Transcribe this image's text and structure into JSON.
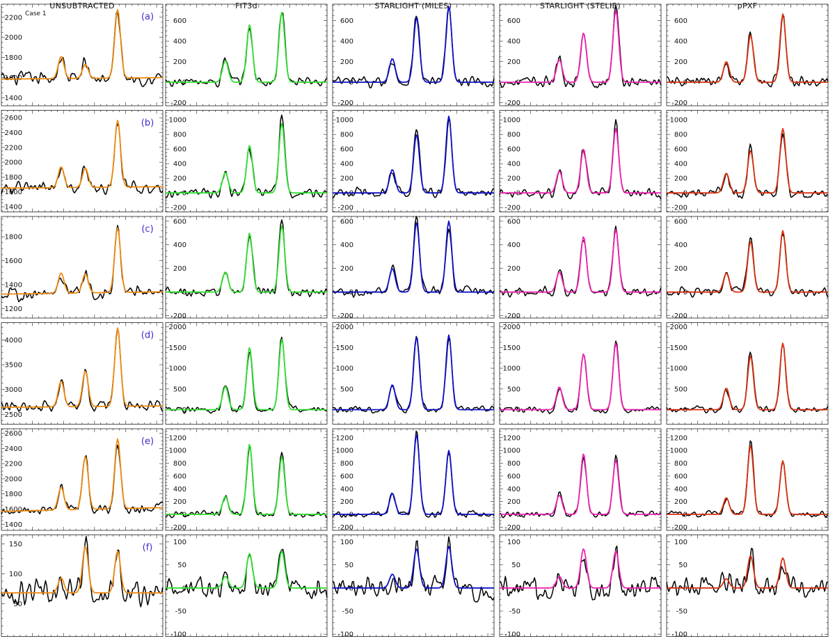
{
  "figure": {
    "case_label": "Case 1"
  },
  "chart_data": {
    "type": "line",
    "column_titles": [
      "UNSUBTRACTED",
      "FIT3d",
      "STARLIGHT (MILES)",
      "STARLIGHT (STELIB)",
      "pPXF"
    ],
    "row_labels": [
      "(a)",
      "(b)",
      "(c)",
      "(d)",
      "(e)",
      "(f)"
    ],
    "colors": {
      "observed": "#000000",
      "UNSUBTRACTED": "#f08a0e",
      "FIT3d": "#2fe02f",
      "STARLIGHT (MILES)": "#1010c8",
      "STARLIGHT (STELIB)": "#ee22b0",
      "pPXF": "#d83010",
      "label": "#3a2ad0"
    },
    "rows": [
      {
        "label": "(a)",
        "unsub": {
          "ylim": [
            1320,
            2330
          ],
          "yticks": [
            1400,
            1600,
            1800,
            2000,
            2200
          ],
          "base": 1585,
          "slope": 15,
          "amps": [
            220,
            140,
            680
          ],
          "noise": 60
        },
        "sub": {
          "ylim": [
            -230,
            760
          ],
          "yticks": [
            -200,
            0,
            200,
            400,
            600
          ],
          "amps": {
            "FIT3d": [
              210,
              560,
              680
            ],
            "MILES": [
              230,
              630,
              740
            ],
            "STELIB": [
              220,
              480,
              700
            ],
            "pPXF": [
              200,
              460,
              660
            ]
          },
          "noise": 45
        }
      },
      {
        "label": "(b)",
        "unsub": {
          "ylim": [
            1330,
            2700
          ],
          "yticks": [
            1400,
            1600,
            1800,
            2000,
            2200,
            2400,
            2600
          ],
          "base": 1650,
          "slope": 20,
          "amps": [
            280,
            260,
            900
          ],
          "noise": 75
        },
        "sub": {
          "ylim": [
            -260,
            1130
          ],
          "yticks": [
            -200,
            0,
            200,
            400,
            600,
            800,
            1000
          ],
          "amps": {
            "FIT3d": [
              280,
              650,
              950
            ],
            "MILES": [
              320,
              800,
              1050
            ],
            "STELIB": [
              300,
              600,
              880
            ],
            "pPXF": [
              270,
              580,
              880
            ]
          },
          "noise": 60
        }
      },
      {
        "label": "(c)",
        "unsub": {
          "ylim": [
            1120,
            1970
          ],
          "yticks": [
            1200,
            1400,
            1600,
            1800
          ],
          "base": 1320,
          "slope": 20,
          "amps": [
            170,
            160,
            540
          ],
          "noise": 45
        },
        "sub": {
          "ylim": [
            -220,
            640
          ],
          "yticks": [
            -200,
            0,
            200,
            400,
            600
          ],
          "amps": {
            "FIT3d": [
              170,
              500,
              560
            ],
            "MILES": [
              200,
              590,
              600
            ],
            "STELIB": [
              170,
              470,
              530
            ],
            "pPXF": [
              160,
              430,
              520
            ]
          },
          "noise": 35
        }
      },
      {
        "label": "(d)",
        "unsub": {
          "ylim": [
            2300,
            4350
          ],
          "yticks": [
            2500,
            3000,
            3500,
            4000
          ],
          "base": 2640,
          "slope": 30,
          "amps": [
            520,
            720,
            1580
          ],
          "noise": 90
        },
        "sub": {
          "ylim": [
            -350,
            2100
          ],
          "yticks": [
            0,
            500,
            1000,
            1500,
            2000
          ],
          "amps": {
            "FIT3d": [
              560,
              1500,
              1700
            ],
            "MILES": [
              600,
              1750,
              1800
            ],
            "STELIB": [
              550,
              1350,
              1600
            ],
            "pPXF": [
              520,
              1300,
              1600
            ]
          },
          "noise": 70
        }
      },
      {
        "label": "(e)",
        "unsub": {
          "ylim": [
            1320,
            2660
          ],
          "yticks": [
            1400,
            1600,
            1800,
            2000,
            2200,
            2400,
            2600
          ],
          "base": 1570,
          "slope": 50,
          "amps": [
            300,
            700,
            920
          ],
          "noise": 60
        },
        "sub": {
          "ylim": [
            -250,
            1340
          ],
          "yticks": [
            -200,
            0,
            200,
            400,
            600,
            800,
            1000,
            1200
          ],
          "amps": {
            "FIT3d": [
              280,
              1100,
              900
            ],
            "MILES": [
              330,
              1250,
              1000
            ],
            "STELIB": [
              300,
              950,
              850
            ],
            "pPXF": [
              260,
              1080,
              840
            ]
          },
          "noise": 45
        }
      },
      {
        "label": "(f)",
        "unsub": {
          "ylim": [
            -5,
            165
          ],
          "yticks": [
            50,
            100,
            150
          ],
          "base": 68,
          "slope": 0,
          "amps": [
            25,
            78,
            70
          ],
          "noise": 18
        },
        "sub": {
          "ylim": [
            -105,
            115
          ],
          "yticks": [
            -100,
            -50,
            0,
            50,
            100
          ],
          "amps": {
            "FIT3d": [
              25,
              75,
              80
            ],
            "MILES": [
              30,
              85,
              90
            ],
            "STELIB": [
              25,
              85,
              80
            ],
            "pPXF": [
              20,
              70,
              65
            ]
          },
          "noise": 20
        }
      }
    ]
  }
}
